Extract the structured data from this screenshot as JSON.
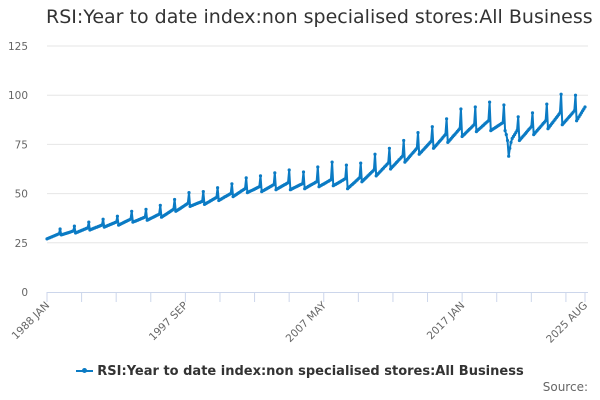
{
  "chart_data": {
    "type": "line",
    "title": "RSI:Year to date index:non specialised stores:All Business",
    "xlabel": "",
    "ylabel": "",
    "x_start": "1988 JAN",
    "x_end": "2025 AUG",
    "frequency": "monthly",
    "ylim": [
      0,
      125
    ],
    "yticks": [
      0,
      25,
      50,
      75,
      100,
      125
    ],
    "xtick_labels": [
      "1988 JAN",
      "1997 SEP",
      "2007 MAY",
      "2017 JAN",
      "2025 AUG"
    ],
    "grid": true,
    "legend_position": "bottom",
    "series": [
      {
        "name": "RSI:Year to date index:non specialised stores:All Business",
        "color": "#0b7bc4",
        "values_by_year": {
          "1988": [
            27,
            27.3,
            27.5,
            27.8,
            28,
            28.3,
            28.5,
            28.8,
            29,
            29.3,
            29.5,
            32
          ],
          "1989": [
            29,
            29.2,
            29.4,
            29.6,
            29.8,
            30,
            30.2,
            30.4,
            30.6,
            30.8,
            31,
            33.5
          ],
          "1990": [
            30,
            30.3,
            30.5,
            30.8,
            31,
            31.3,
            31.5,
            31.8,
            32,
            32.3,
            32.5,
            35.5
          ],
          "1991": [
            31.5,
            31.8,
            32,
            32.3,
            32.5,
            32.8,
            33,
            33.3,
            33.5,
            33.8,
            34,
            37
          ],
          "1992": [
            33,
            33.3,
            33.5,
            33.8,
            34,
            34.3,
            34.5,
            34.8,
            35,
            35.3,
            35.5,
            38.5
          ],
          "1993": [
            34,
            34.3,
            34.6,
            34.9,
            35.2,
            35.5,
            35.8,
            36.1,
            36.4,
            36.7,
            37,
            41
          ],
          "1994": [
            35.5,
            35.8,
            36,
            36.3,
            36.5,
            36.8,
            37,
            37.3,
            37.5,
            37.8,
            38,
            42
          ],
          "1995": [
            36.5,
            36.8,
            37.1,
            37.4,
            37.7,
            38,
            38.3,
            38.6,
            38.9,
            39.2,
            39.5,
            44
          ],
          "1996": [
            38,
            38.4,
            38.8,
            39.2,
            39.6,
            40,
            40.4,
            40.8,
            41.2,
            41.6,
            42,
            47
          ],
          "1997": [
            41,
            41.4,
            41.8,
            42.2,
            42.6,
            43,
            43.4,
            43.8,
            44.2,
            44.6,
            45,
            50.5
          ],
          "1998": [
            43.5,
            43.8,
            44,
            44.3,
            44.5,
            44.8,
            45,
            45.3,
            45.5,
            45.8,
            46,
            51
          ],
          "1999": [
            44.5,
            44.9,
            45.2,
            45.6,
            45.9,
            46.3,
            46.6,
            47,
            47.3,
            47.7,
            48,
            53
          ],
          "2000": [
            46.5,
            46.9,
            47.2,
            47.6,
            47.9,
            48.3,
            48.6,
            49,
            49.3,
            49.7,
            50,
            55
          ],
          "2001": [
            48.5,
            48.9,
            49.3,
            49.7,
            50.1,
            50.5,
            50.9,
            51.3,
            51.7,
            52.1,
            52.5,
            58
          ],
          "2002": [
            50.5,
            50.8,
            51.1,
            51.4,
            51.7,
            52,
            52.3,
            52.6,
            52.9,
            53.2,
            53.5,
            59
          ],
          "2003": [
            51,
            51.4,
            51.7,
            52.1,
            52.4,
            52.8,
            53.1,
            53.5,
            53.8,
            54.2,
            54.5,
            60.5
          ],
          "2004": [
            52,
            52.4,
            52.7,
            53.1,
            53.4,
            53.8,
            54.1,
            54.5,
            54.8,
            55.2,
            55.5,
            62
          ],
          "2005": [
            52,
            52.3,
            52.6,
            52.9,
            53.2,
            53.5,
            53.8,
            54.1,
            54.4,
            54.7,
            55,
            61
          ],
          "2006": [
            52.5,
            52.9,
            53.2,
            53.6,
            53.9,
            54.3,
            54.6,
            55,
            55.3,
            55.7,
            56,
            63.5
          ],
          "2007": [
            53.5,
            53.9,
            54.2,
            54.6,
            54.9,
            55.3,
            55.6,
            56,
            56.3,
            56.7,
            57,
            66
          ],
          "2008": [
            54,
            54.4,
            54.7,
            55.1,
            55.4,
            55.8,
            56.1,
            56.5,
            56.8,
            57.2,
            57.5,
            64.5
          ],
          "2009": [
            52.5,
            53.1,
            53.6,
            54.2,
            54.7,
            55.3,
            55.8,
            56.4,
            56.9,
            57.5,
            58,
            65.5
          ],
          "2010": [
            56,
            56.6,
            57.2,
            57.8,
            58.4,
            59,
            59.6,
            60.2,
            60.8,
            61.4,
            62,
            70
          ],
          "2011": [
            59,
            59.7,
            60.3,
            61,
            61.6,
            62.3,
            62.9,
            63.6,
            64.2,
            64.9,
            65.5,
            73
          ],
          "2012": [
            62.5,
            63.2,
            63.8,
            64.5,
            65.1,
            65.8,
            66.4,
            67.1,
            67.7,
            68.4,
            69,
            77
          ],
          "2013": [
            66,
            66.7,
            67.4,
            68.1,
            68.8,
            69.5,
            70.2,
            70.9,
            71.6,
            72.3,
            73,
            81
          ],
          "2014": [
            70,
            70.7,
            71.3,
            72,
            72.6,
            73.3,
            73.9,
            74.6,
            75.2,
            75.9,
            76.5,
            84
          ],
          "2015": [
            73,
            73.7,
            74.4,
            75.1,
            75.8,
            76.5,
            77.2,
            77.9,
            78.6,
            79.3,
            80,
            88
          ],
          "2016": [
            76,
            76.7,
            77.4,
            78.1,
            78.8,
            79.5,
            80.2,
            80.9,
            81.6,
            82.3,
            83,
            93
          ],
          "2017": [
            79,
            79.6,
            80.2,
            80.8,
            81.4,
            82,
            82.6,
            83.2,
            83.8,
            84.4,
            85,
            94
          ],
          "2018": [
            81.5,
            82.1,
            82.6,
            83.2,
            83.7,
            84.3,
            84.8,
            85.4,
            85.9,
            86.5,
            87,
            96.5
          ],
          "2019": [
            82,
            82.4,
            82.8,
            83.2,
            83.6,
            84,
            84.4,
            84.8,
            85.2,
            85.6,
            86,
            95
          ],
          "2020": [
            82,
            80,
            77,
            69,
            73,
            76,
            78,
            79,
            80,
            81,
            82,
            89
          ],
          "2021": [
            77,
            77.7,
            78.4,
            79.1,
            79.8,
            80.5,
            81.2,
            81.9,
            82.6,
            83.3,
            84,
            91
          ],
          "2022": [
            80,
            80.7,
            81.4,
            82.1,
            82.8,
            83.5,
            84.2,
            84.9,
            85.6,
            86.3,
            87,
            95.5
          ],
          "2023": [
            83,
            83.8,
            84.6,
            85.4,
            86.2,
            87,
            87.8,
            88.6,
            89.4,
            90.2,
            91,
            100.5
          ],
          "2024": [
            85,
            85.7,
            86.4,
            87.1,
            87.8,
            88.5,
            89.2,
            89.9,
            90.6,
            91.3,
            92,
            100
          ],
          "2025": [
            87,
            88,
            89,
            90,
            91,
            92,
            93,
            94
          ]
        }
      }
    ]
  },
  "footer": {
    "source_label": "Source:"
  }
}
